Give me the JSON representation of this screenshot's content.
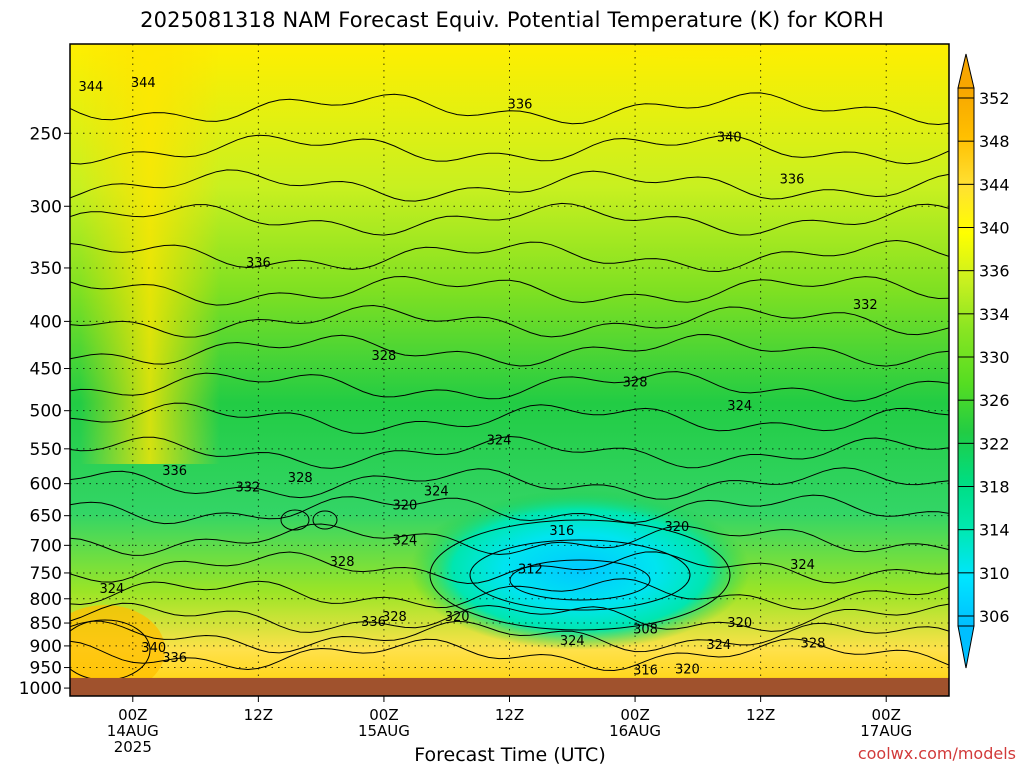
{
  "title": "2025081318 NAM Forecast Equiv. Potential Temperature (K) for KORH",
  "credit": "coolwx.com/models",
  "colors": {
    "ground": "#a0522d",
    "grid": "#000000",
    "scale": [
      "#00bfff",
      "#00e5ff",
      "#00e8b0",
      "#00dd80",
      "#22cc44",
      "#55dd22",
      "#88e522",
      "#c8f020",
      "#ffff00",
      "#ffe033",
      "#ffbf00",
      "#f7a600"
    ]
  },
  "chart_data": {
    "type": "heatmap",
    "title": "2025081318 NAM Forecast Equiv. Potential Temperature (K) for KORH",
    "xlabel": "Forecast Time (UTC)",
    "ylabel": "",
    "x_ticks": [
      {
        "label": "00Z",
        "sub": [
          "14AUG",
          "2025"
        ],
        "hour": 6
      },
      {
        "label": "12Z",
        "sub": [],
        "hour": 18
      },
      {
        "label": "00Z",
        "sub": [
          "15AUG"
        ],
        "hour": 30
      },
      {
        "label": "12Z",
        "sub": [],
        "hour": 42
      },
      {
        "label": "00Z",
        "sub": [
          "16AUG"
        ],
        "hour": 54
      },
      {
        "label": "12Z",
        "sub": [],
        "hour": 66
      },
      {
        "label": "00Z",
        "sub": [
          "17AUG"
        ],
        "hour": 78
      }
    ],
    "x_range_hours": [
      0,
      84
    ],
    "y_axis": "pressure (hPa), log scale",
    "y_ticks": [
      250,
      300,
      350,
      400,
      450,
      500,
      550,
      600,
      650,
      700,
      750,
      800,
      850,
      900,
      950,
      1000
    ],
    "y_range": [
      200,
      1020
    ],
    "ground_level_hpa": 975,
    "colorbar": {
      "labels": [
        352,
        348,
        344,
        340,
        336,
        334,
        330,
        326,
        322,
        318,
        314,
        310,
        306
      ],
      "range": [
        306,
        352
      ]
    },
    "contour_labels": [
      {
        "hour": 2,
        "p": 222,
        "v": 344
      },
      {
        "hour": 7,
        "p": 220,
        "v": 344
      },
      {
        "hour": 43,
        "p": 232,
        "v": 336
      },
      {
        "hour": 63,
        "p": 252,
        "v": 340
      },
      {
        "hour": 69,
        "p": 280,
        "v": 336
      },
      {
        "hour": 76,
        "p": 383,
        "v": 332
      },
      {
        "hour": 18,
        "p": 345,
        "v": 336
      },
      {
        "hour": 30,
        "p": 435,
        "v": 328
      },
      {
        "hour": 54,
        "p": 465,
        "v": 328
      },
      {
        "hour": 64,
        "p": 493,
        "v": 324
      },
      {
        "hour": 41,
        "p": 537,
        "v": 324
      },
      {
        "hour": 10,
        "p": 580,
        "v": 336
      },
      {
        "hour": 17,
        "p": 604,
        "v": 332
      },
      {
        "hour": 22,
        "p": 590,
        "v": 328
      },
      {
        "hour": 35,
        "p": 610,
        "v": 324
      },
      {
        "hour": 32,
        "p": 632,
        "v": 320
      },
      {
        "hour": 47,
        "p": 674,
        "v": 316
      },
      {
        "hour": 58,
        "p": 667,
        "v": 320
      },
      {
        "hour": 32,
        "p": 690,
        "v": 324
      },
      {
        "hour": 26,
        "p": 728,
        "v": 328
      },
      {
        "hour": 44,
        "p": 742,
        "v": 312
      },
      {
        "hour": 70,
        "p": 733,
        "v": 324
      },
      {
        "hour": 4,
        "p": 779,
        "v": 324
      },
      {
        "hour": 29,
        "p": 846,
        "v": 336
      },
      {
        "hour": 31,
        "p": 835,
        "v": 328
      },
      {
        "hour": 37,
        "p": 835,
        "v": 320
      },
      {
        "hour": 55,
        "p": 862,
        "v": 308
      },
      {
        "hour": 64,
        "p": 848,
        "v": 320
      },
      {
        "hour": 48,
        "p": 887,
        "v": 324
      },
      {
        "hour": 62,
        "p": 896,
        "v": 324
      },
      {
        "hour": 71,
        "p": 892,
        "v": 328
      },
      {
        "hour": 8,
        "p": 903,
        "v": 340
      },
      {
        "hour": 10,
        "p": 925,
        "v": 336
      },
      {
        "hour": 55,
        "p": 955,
        "v": 316
      },
      {
        "hour": 59,
        "p": 952,
        "v": 320
      }
    ]
  },
  "xlabel": "Forecast Time (UTC)"
}
